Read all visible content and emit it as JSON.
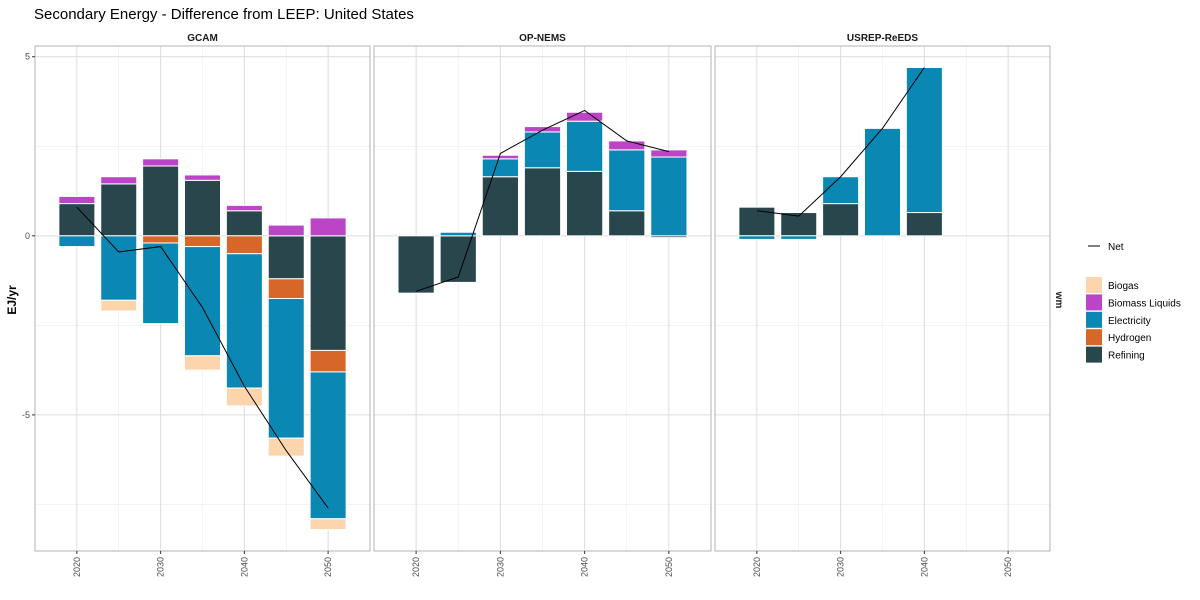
{
  "chart_data": {
    "type": "bar",
    "title": "Secondary Energy  - Difference from LEEP: United States",
    "ylabel": "EJ/yr",
    "right_strip": "wm",
    "ylim": [
      -8.8,
      5.3
    ],
    "yticks": [
      5,
      0,
      -5
    ],
    "x_ticks": [
      2020,
      2030,
      2040,
      2050
    ],
    "xlim": [
      2015,
      2055
    ],
    "bar_width": 4.3,
    "grid": true,
    "legend_position": "right",
    "line_legend": "Net",
    "category_order": [
      "Biogas",
      "Biomass Liquids",
      "Electricity",
      "Hydrogen",
      "Refining"
    ],
    "stack_order": [
      "Refining",
      "Hydrogen",
      "Electricity",
      "Biomass Liquids",
      "Biogas"
    ],
    "colors": {
      "Biogas": "#fdd5ac",
      "Biomass Liquids": "#bb45c6",
      "Electricity": "#0b87b4",
      "Hydrogen": "#d76729",
      "Refining": "#28464c",
      "Net": "#000000"
    },
    "panels": [
      {
        "name": "GCAM",
        "x": [
          2020,
          2025,
          2030,
          2035,
          2040,
          2045,
          2050
        ],
        "series": [
          {
            "name": "Refining",
            "values": [
              0.9,
              1.45,
              1.95,
              1.55,
              0.7,
              -1.2,
              -3.2
            ]
          },
          {
            "name": "Hydrogen",
            "values": [
              0,
              0,
              -0.2,
              -0.3,
              -0.5,
              -0.55,
              -0.6
            ]
          },
          {
            "name": "Electricity",
            "values": [
              -0.3,
              -1.8,
              -2.25,
              -3.05,
              -3.75,
              -3.9,
              -4.1
            ]
          },
          {
            "name": "Biomass Liquids",
            "values": [
              0.2,
              0.2,
              0.2,
              0.15,
              0.15,
              0.3,
              0.5
            ]
          },
          {
            "name": "Biogas",
            "values": [
              0,
              -0.3,
              0,
              -0.4,
              -0.5,
              -0.5,
              -0.3
            ]
          }
        ],
        "net": [
          0.8,
          -0.45,
          -0.3,
          -2.0,
          -4.2,
          -6.0,
          -7.6
        ]
      },
      {
        "name": "OP-NEMS",
        "x": [
          2020,
          2025,
          2030,
          2035,
          2040,
          2045,
          2050
        ],
        "series": [
          {
            "name": "Refining",
            "values": [
              -1.6,
              -1.3,
              1.65,
              1.9,
              1.8,
              0.7,
              -0.05
            ]
          },
          {
            "name": "Hydrogen",
            "values": [
              0,
              0,
              0,
              0,
              0,
              0,
              0
            ]
          },
          {
            "name": "Electricity",
            "values": [
              0,
              0.1,
              0.5,
              1.0,
              1.4,
              1.7,
              2.2
            ]
          },
          {
            "name": "Biomass Liquids",
            "values": [
              0,
              0,
              0.1,
              0.15,
              0.25,
              0.25,
              0.2
            ]
          },
          {
            "name": "Biogas",
            "values": [
              0,
              0,
              0,
              0,
              0,
              0,
              0
            ]
          }
        ],
        "net": [
          -1.55,
          -1.15,
          2.3,
          2.95,
          3.5,
          2.65,
          2.35
        ]
      },
      {
        "name": "USREP-ReEDS",
        "x": [
          2020,
          2025,
          2030,
          2035,
          2040
        ],
        "series": [
          {
            "name": "Refining",
            "values": [
              0.8,
              0.65,
              0.9,
              0,
              0.65
            ]
          },
          {
            "name": "Hydrogen",
            "values": [
              0,
              0,
              0,
              0,
              0
            ]
          },
          {
            "name": "Electricity",
            "values": [
              -0.1,
              -0.1,
              0.75,
              3.0,
              4.05
            ]
          },
          {
            "name": "Biomass Liquids",
            "values": [
              0,
              0,
              0,
              0,
              0
            ]
          },
          {
            "name": "Biogas",
            "values": [
              0,
              0,
              0,
              0,
              0
            ]
          }
        ],
        "net": [
          0.7,
          0.55,
          1.65,
          3.0,
          4.7
        ]
      }
    ]
  }
}
